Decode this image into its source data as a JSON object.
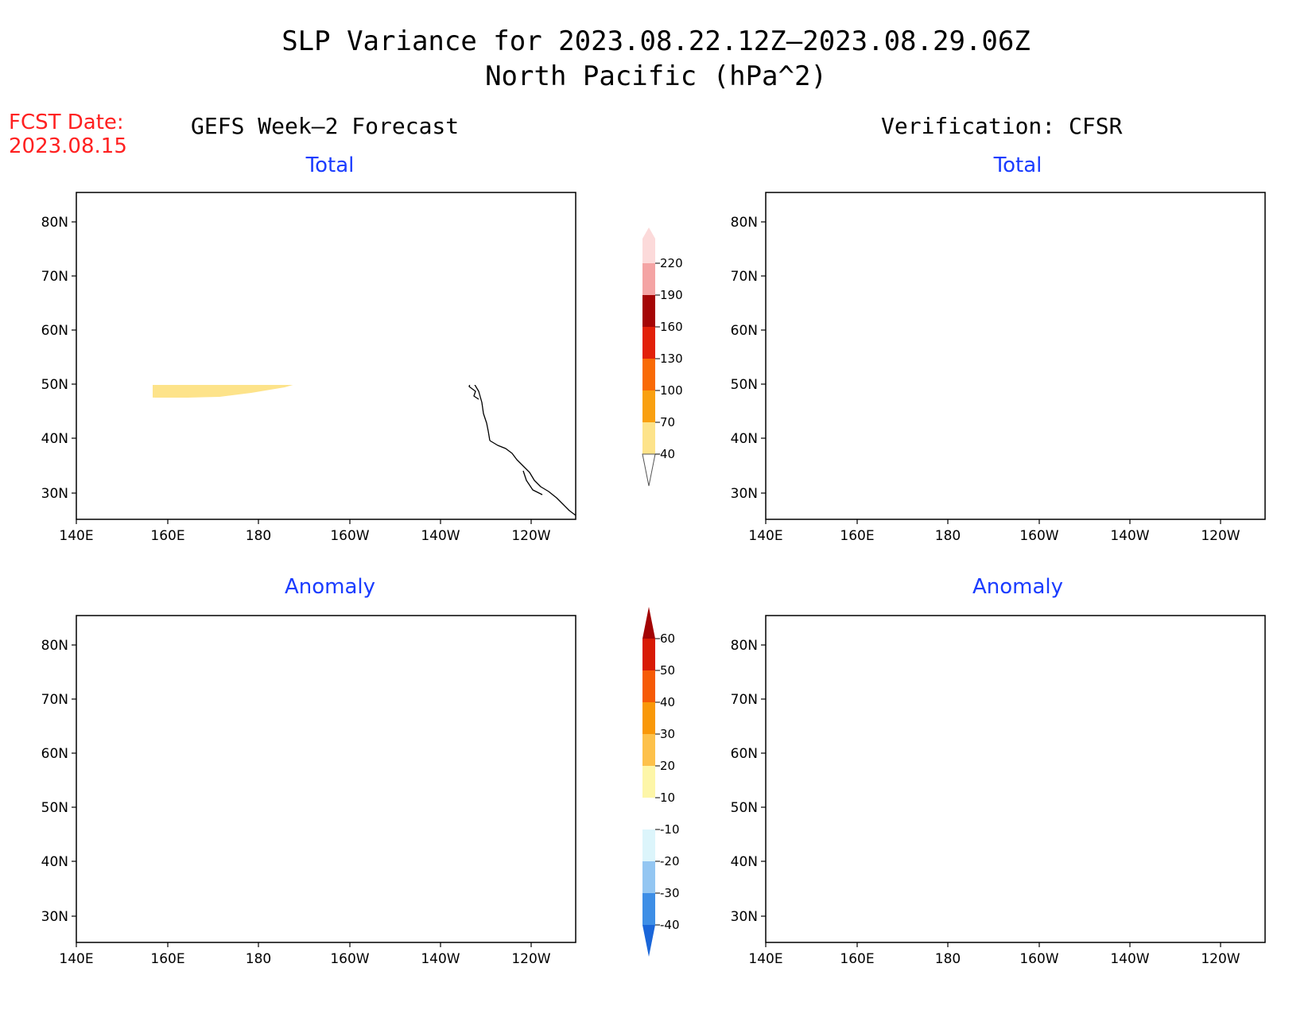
{
  "header": {
    "title_line1": "SLP Variance for 2023.08.22.12Z–2023.08.29.06Z",
    "title_line2": "North Pacific (hPa^2)",
    "fcst_date_label": "FCST Date:",
    "fcst_date_value": "2023.08.15",
    "left_column": "GEFS Week–2 Forecast",
    "right_column": "Verification: CFSR"
  },
  "panels": {
    "top_left_label": "Total",
    "top_right_label": "Total",
    "bottom_left_label": "Anomaly",
    "bottom_right_label": "Anomaly"
  },
  "axes": {
    "lat_ticks": [
      "80N",
      "70N",
      "60N",
      "50N",
      "40N",
      "30N"
    ],
    "lon_ticks": [
      "140E",
      "160E",
      "180",
      "160W",
      "140W",
      "120W"
    ]
  },
  "colorbars": {
    "total": {
      "labels": [
        "40",
        "70",
        "100",
        "130",
        "160",
        "190",
        "220"
      ],
      "colors": [
        "#fde38a",
        "#f9a010",
        "#f96a05",
        "#e22008",
        "#a50505",
        "#f4a4a4",
        "#fcdada"
      ]
    },
    "anomaly": {
      "labels": [
        "-40",
        "-30",
        "-20",
        "-10",
        "10",
        "20",
        "30",
        "40",
        "50",
        "60"
      ],
      "colors": [
        "#1a66d9",
        "#3d8ee6",
        "#93c6f2",
        "#dcf5fb",
        "#ffffff",
        "#fdf6a8",
        "#fdc14a",
        "#f99808",
        "#f65a05",
        "#d81a04",
        "#a30404"
      ]
    }
  }
}
